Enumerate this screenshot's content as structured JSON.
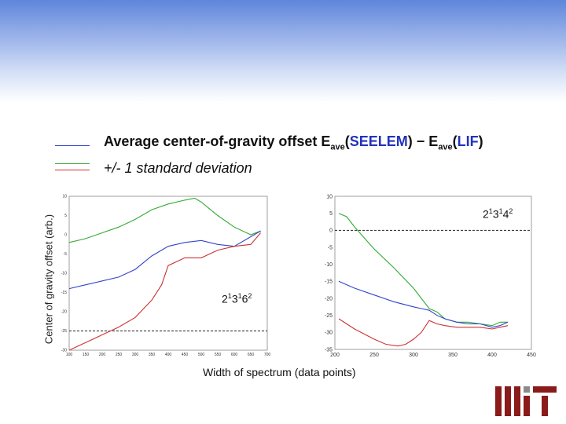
{
  "legend": {
    "title_prefix": "Average center-of-gravity offset E",
    "sub1": "ave",
    "paren1_open": "(",
    "tag1": "SEELEM",
    "mid": ") − E",
    "sub2": "ave",
    "paren2_open": "(",
    "tag2": "LIF",
    "paren_close": ")",
    "sd_label": "+/- 1 standard deviation",
    "mean_color": "#3344cc",
    "upper_color": "#33aa33",
    "lower_color": "#cc3333"
  },
  "logo_text": "MIT",
  "chart_data": [
    {
      "type": "line",
      "annotation": {
        "base": "2",
        "exps": [
          "1",
          "3",
          "1",
          "6",
          "2"
        ]
      },
      "ylabel": "Center of gravity offset (arb.)",
      "xlim": [
        100,
        700
      ],
      "ylim": [
        -30,
        10
      ],
      "x_ticks": [
        100,
        150,
        200,
        250,
        300,
        350,
        400,
        450,
        500,
        550,
        600,
        650,
        700
      ],
      "y_ticks": [
        10,
        5,
        0,
        -5,
        -10,
        -15,
        -20,
        -25,
        -30
      ],
      "reference_y": -25,
      "series": [
        {
          "role": "upper",
          "color": "#33aa33",
          "x": [
            100,
            150,
            200,
            250,
            300,
            350,
            400,
            450,
            480,
            500,
            550,
            600,
            650,
            680
          ],
          "y": [
            -2,
            -1,
            0.5,
            2,
            4,
            6.5,
            8,
            9,
            9.5,
            8.5,
            5,
            2,
            0,
            1
          ]
        },
        {
          "role": "mean",
          "color": "#3344cc",
          "x": [
            100,
            150,
            200,
            250,
            300,
            350,
            400,
            450,
            500,
            550,
            600,
            650,
            680
          ],
          "y": [
            -14,
            -13,
            -12,
            -11,
            -9,
            -5.5,
            -3,
            -2,
            -1.5,
            -2.5,
            -3,
            -0.5,
            1
          ]
        },
        {
          "role": "lower",
          "color": "#cc3333",
          "x": [
            100,
            150,
            200,
            250,
            300,
            350,
            380,
            400,
            450,
            500,
            550,
            600,
            650,
            680
          ],
          "y": [
            -30,
            -28,
            -26,
            -24,
            -21.5,
            -17,
            -13,
            -8,
            -6,
            -6,
            -4,
            -3,
            -2.5,
            0.5
          ]
        }
      ]
    },
    {
      "type": "line",
      "annotation": {
        "base": "2",
        "exps": [
          "1",
          "3",
          "1",
          "4",
          "2"
        ]
      },
      "xlabel": "Width of spectrum (data points)",
      "xlim": [
        200,
        450
      ],
      "ylim": [
        -35,
        10
      ],
      "x_ticks": [
        200,
        250,
        300,
        350,
        400,
        450
      ],
      "y_ticks": [
        10,
        5,
        0,
        -5,
        -10,
        -15,
        -20,
        -25,
        -30,
        -35
      ],
      "reference_y": 0,
      "series": [
        {
          "role": "upper",
          "color": "#33aa33",
          "x": [
            205,
            215,
            225,
            250,
            275,
            300,
            310,
            320,
            330,
            340,
            355,
            370,
            385,
            400,
            410,
            420
          ],
          "y": [
            5,
            4,
            1,
            -5.5,
            -11,
            -17,
            -20,
            -23,
            -24,
            -26,
            -27,
            -27,
            -27.5,
            -28,
            -27,
            -27
          ]
        },
        {
          "role": "mean",
          "color": "#3344cc",
          "x": [
            205,
            225,
            250,
            275,
            300,
            310,
            320,
            330,
            340,
            355,
            370,
            385,
            400,
            410,
            420
          ],
          "y": [
            -15,
            -17,
            -19,
            -21,
            -22.5,
            -23,
            -23.5,
            -25,
            -26,
            -27,
            -27.5,
            -27.5,
            -28.5,
            -28,
            -27
          ]
        },
        {
          "role": "lower",
          "color": "#cc3333",
          "x": [
            205,
            225,
            250,
            265,
            280,
            290,
            300,
            310,
            320,
            330,
            340,
            355,
            370,
            385,
            400,
            410,
            420
          ],
          "y": [
            -26,
            -29,
            -32,
            -33.5,
            -34,
            -33.5,
            -32,
            -30,
            -26.5,
            -27.5,
            -28,
            -28.5,
            -28.5,
            -28.5,
            -29,
            -28.5,
            -28
          ]
        }
      ]
    }
  ]
}
